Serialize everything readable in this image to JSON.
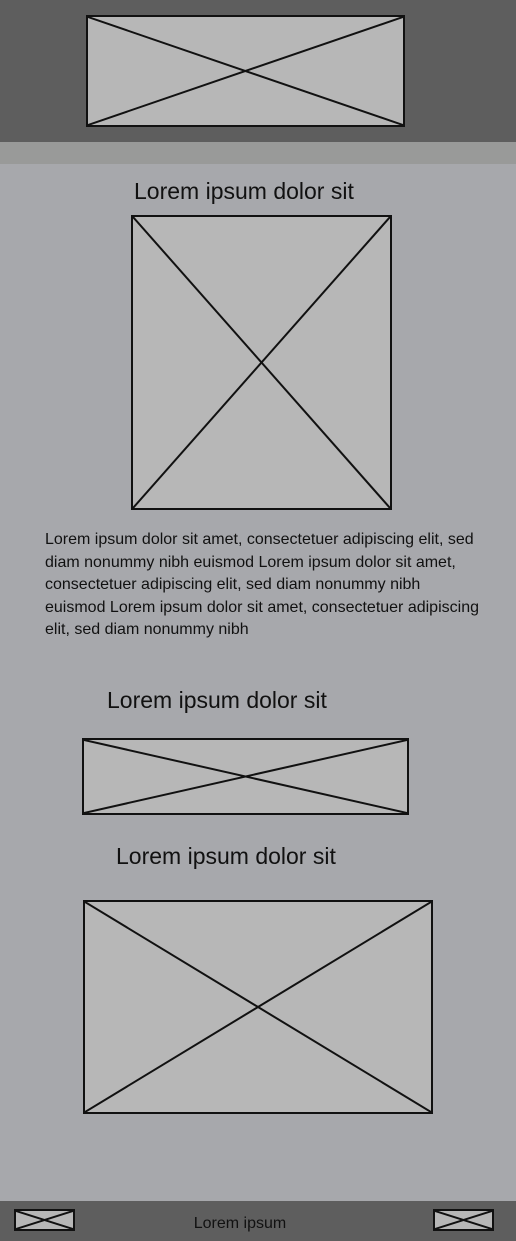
{
  "header": {
    "logo_icon": "image-placeholder-icon"
  },
  "main": {
    "section1": {
      "heading": "Lorem ipsum dolor sit",
      "image_icon": "image-placeholder-icon",
      "body": "Lorem ipsum dolor sit amet, consectetuer adipiscing elit, sed diam nonummy nibh euismod Lorem ipsum dolor sit amet, consectetuer adipiscing elit, sed diam nonummy nibh euismod Lorem ipsum dolor sit amet, consectetuer adipiscing elit, sed diam nonummy nibh"
    },
    "section2": {
      "heading": "Lorem ipsum dolor sit",
      "image_icon": "image-placeholder-icon"
    },
    "section3": {
      "heading": "Lorem ipsum dolor sit",
      "image_icon": "image-placeholder-icon"
    }
  },
  "footer": {
    "left_icon": "image-placeholder-icon",
    "label": "Lorem ipsum",
    "right_icon": "image-placeholder-icon"
  },
  "colors": {
    "header_bg": "#5e5e5e",
    "subbar_bg": "#999a99",
    "content_bg": "#a7a8ac",
    "placeholder_fill": "#b7b7b7",
    "stroke": "#111111"
  }
}
